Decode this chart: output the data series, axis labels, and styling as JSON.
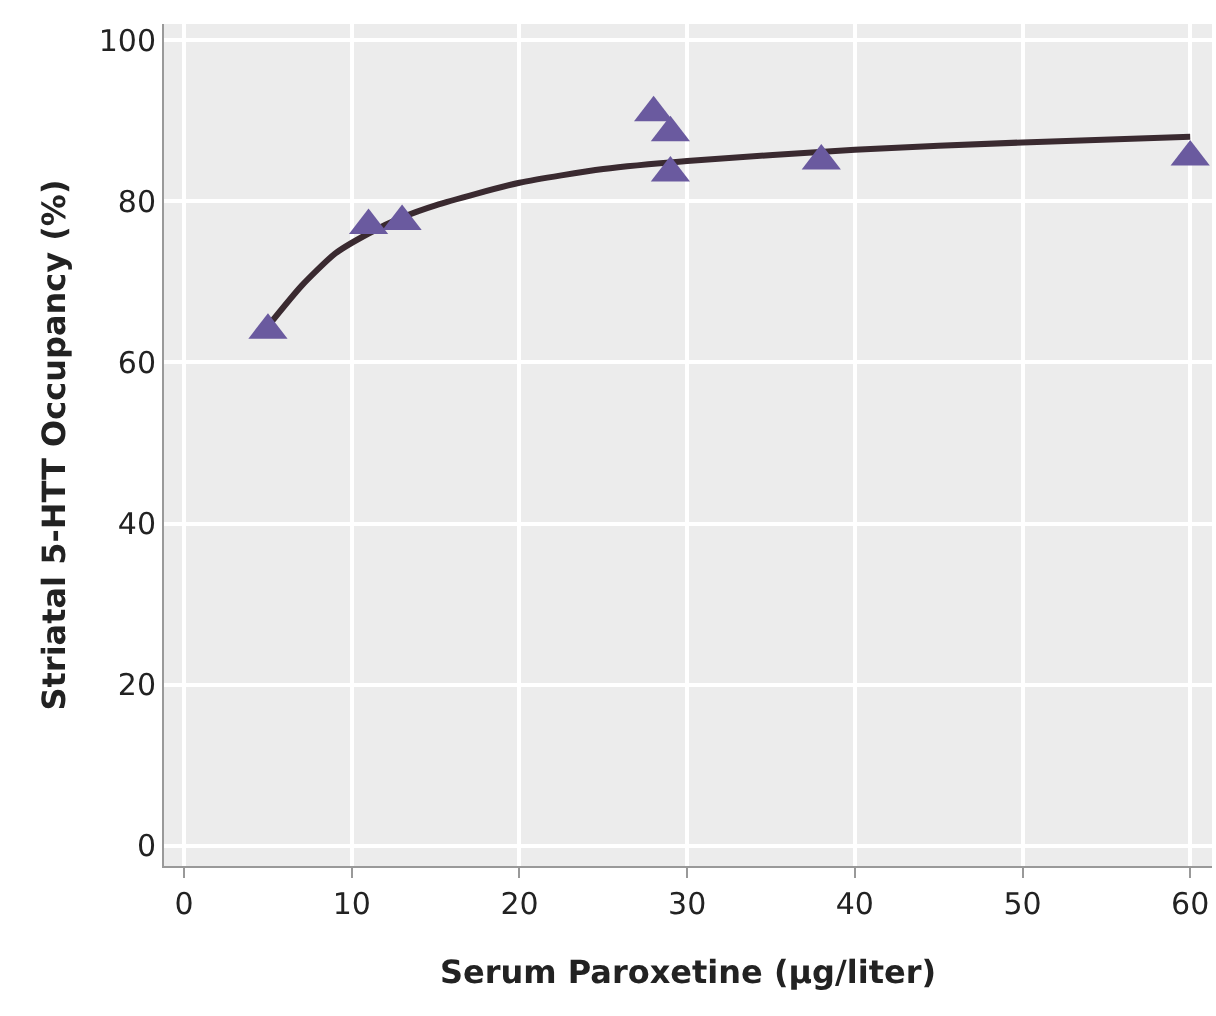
{
  "chart_data": {
    "type": "scatter",
    "xlabel": "Serum Paroxetine (µg/liter)",
    "ylabel": "Striatal 5-HTT Occupancy (%)",
    "xlim": [
      -1.2,
      61.3
    ],
    "ylim": [
      -2.5,
      102
    ],
    "xticks": [
      0,
      10,
      20,
      30,
      40,
      50,
      60
    ],
    "yticks": [
      0,
      20,
      40,
      60,
      80,
      100
    ],
    "grid": true,
    "series": [
      {
        "color": "#6a5a9f",
        "marker": "triangle",
        "x": [
          5,
          11,
          13,
          28,
          29,
          29,
          38,
          60
        ],
        "values": [
          64,
          77,
          77.5,
          91,
          88.5,
          83.5,
          85,
          85.5
        ]
      },
      {
        "type": "line",
        "color": "#3a2a30",
        "marker": "none",
        "line_style": "solid",
        "x": [
          5,
          7,
          9,
          11,
          13,
          15,
          20,
          25,
          30,
          40,
          50,
          60
        ],
        "values": [
          64.5,
          69.5,
          73.5,
          76,
          78,
          79.5,
          82.3,
          84,
          85,
          86.4,
          87.3,
          88
        ]
      }
    ]
  }
}
